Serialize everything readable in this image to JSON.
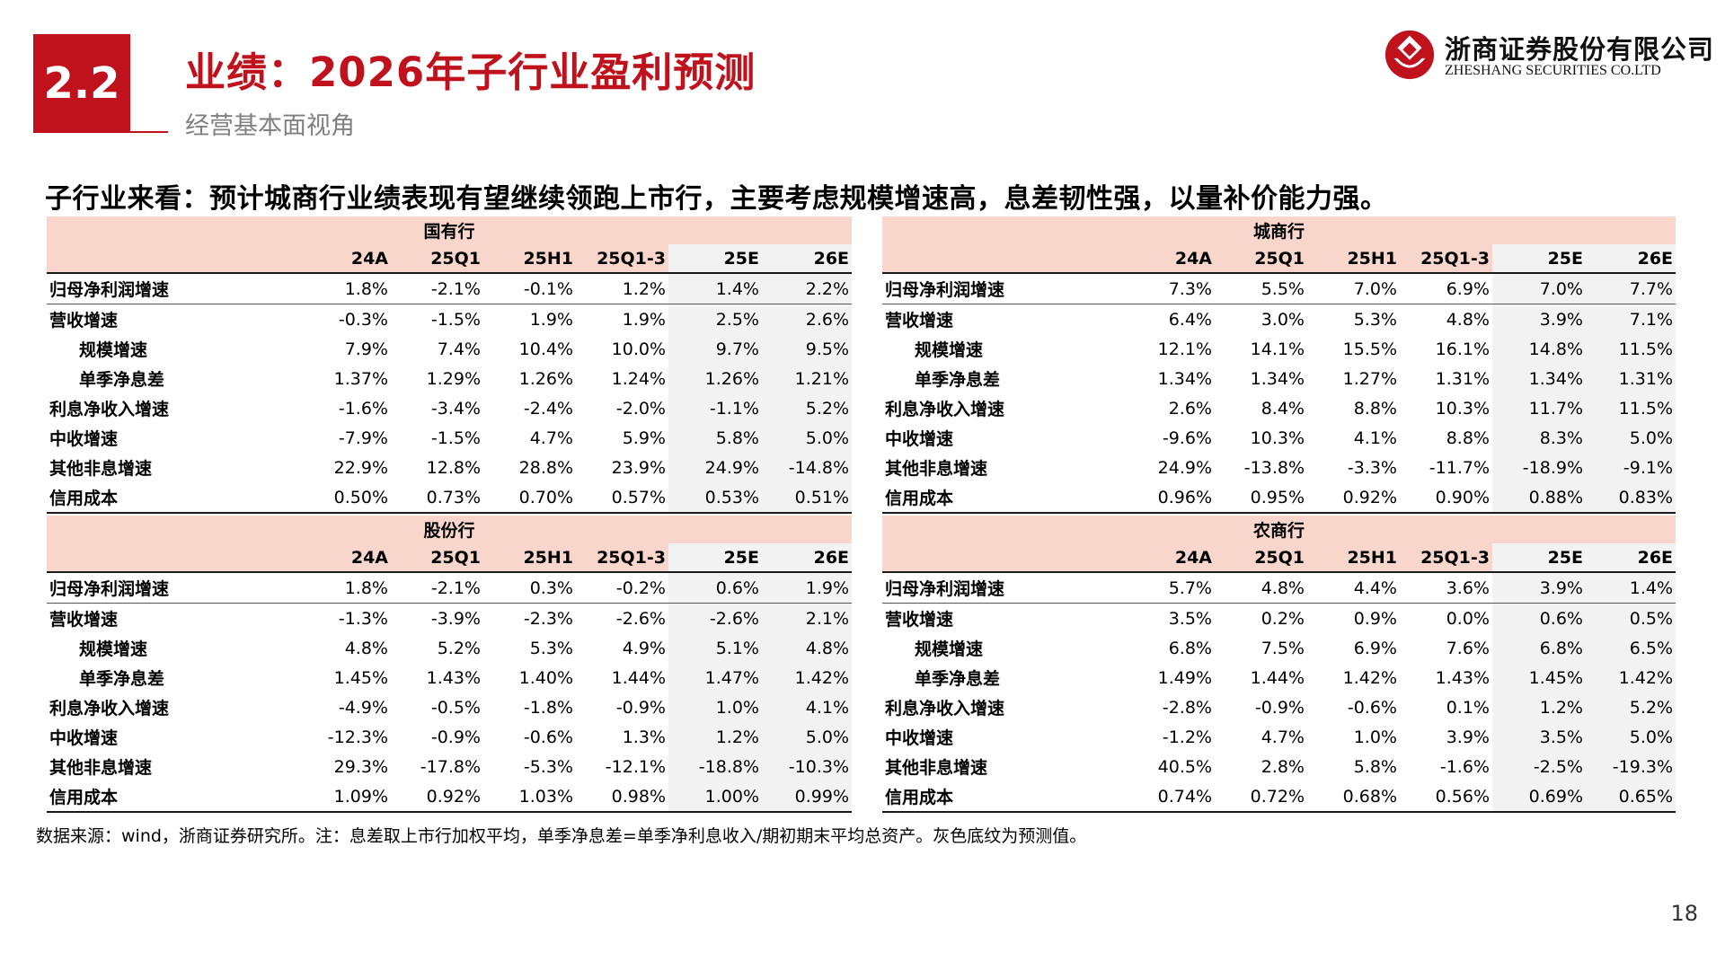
{
  "header": {
    "section_number": "2.2",
    "title": "业绩：2026年子行业盈利预测",
    "subtitle": "经营基本面视角"
  },
  "logo": {
    "cn": "浙商证券股份有限公司",
    "en": "ZHESHANG SECURITIES CO.LTD",
    "brand_color": "#c0121d"
  },
  "headline": "子行业来看：预计城商行业绩表现有望继续领跑上市行，主要考虑规模增速高，息差韧性强，以量补价能力强。",
  "columns": [
    "24A",
    "25Q1",
    "25H1",
    "25Q1-3",
    "25E",
    "26E"
  ],
  "row_labels": [
    "归母净利润增速",
    "营收增速",
    "规模增速",
    "单季净息差",
    "利息净收入增速",
    "中收增速",
    "其他非息增速",
    "信用成本"
  ],
  "tables": {
    "state": {
      "name": "国有行",
      "rows": [
        [
          "1.8%",
          "-2.1%",
          "-0.1%",
          "1.2%",
          "1.4%",
          "2.2%"
        ],
        [
          "-0.3%",
          "-1.5%",
          "1.9%",
          "1.9%",
          "2.5%",
          "2.6%"
        ],
        [
          "7.9%",
          "7.4%",
          "10.4%",
          "10.0%",
          "9.7%",
          "9.5%"
        ],
        [
          "1.37%",
          "1.29%",
          "1.26%",
          "1.24%",
          "1.26%",
          "1.21%"
        ],
        [
          "-1.6%",
          "-3.4%",
          "-2.4%",
          "-2.0%",
          "-1.1%",
          "5.2%"
        ],
        [
          "-7.9%",
          "-1.5%",
          "4.7%",
          "5.9%",
          "5.8%",
          "5.0%"
        ],
        [
          "22.9%",
          "12.8%",
          "28.8%",
          "23.9%",
          "24.9%",
          "-14.8%"
        ],
        [
          "0.50%",
          "0.73%",
          "0.70%",
          "0.57%",
          "0.53%",
          "0.51%"
        ]
      ]
    },
    "city": {
      "name": "城商行",
      "rows": [
        [
          "7.3%",
          "5.5%",
          "7.0%",
          "6.9%",
          "7.0%",
          "7.7%"
        ],
        [
          "6.4%",
          "3.0%",
          "5.3%",
          "4.8%",
          "3.9%",
          "7.1%"
        ],
        [
          "12.1%",
          "14.1%",
          "15.5%",
          "16.1%",
          "14.8%",
          "11.5%"
        ],
        [
          "1.34%",
          "1.34%",
          "1.27%",
          "1.31%",
          "1.34%",
          "1.31%"
        ],
        [
          "2.6%",
          "8.4%",
          "8.8%",
          "10.3%",
          "11.7%",
          "11.5%"
        ],
        [
          "-9.6%",
          "10.3%",
          "4.1%",
          "8.8%",
          "8.3%",
          "5.0%"
        ],
        [
          "24.9%",
          "-13.8%",
          "-3.3%",
          "-11.7%",
          "-18.9%",
          "-9.1%"
        ],
        [
          "0.96%",
          "0.95%",
          "0.92%",
          "0.90%",
          "0.88%",
          "0.83%"
        ]
      ]
    },
    "joint": {
      "name": "股份行",
      "rows": [
        [
          "1.8%",
          "-2.1%",
          "0.3%",
          "-0.2%",
          "0.6%",
          "1.9%"
        ],
        [
          "-1.3%",
          "-3.9%",
          "-2.3%",
          "-2.6%",
          "-2.6%",
          "2.1%"
        ],
        [
          "4.8%",
          "5.2%",
          "5.3%",
          "4.9%",
          "5.1%",
          "4.8%"
        ],
        [
          "1.45%",
          "1.43%",
          "1.40%",
          "1.44%",
          "1.47%",
          "1.42%"
        ],
        [
          "-4.9%",
          "-0.5%",
          "-1.8%",
          "-0.9%",
          "1.0%",
          "4.1%"
        ],
        [
          "-12.3%",
          "-0.9%",
          "-0.6%",
          "1.3%",
          "1.2%",
          "5.0%"
        ],
        [
          "29.3%",
          "-17.8%",
          "-5.3%",
          "-12.1%",
          "-18.8%",
          "-10.3%"
        ],
        [
          "1.09%",
          "0.92%",
          "1.03%",
          "0.98%",
          "1.00%",
          "0.99%"
        ]
      ]
    },
    "rural": {
      "name": "农商行",
      "rows": [
        [
          "5.7%",
          "4.8%",
          "4.4%",
          "3.6%",
          "3.9%",
          "1.4%"
        ],
        [
          "3.5%",
          "0.2%",
          "0.9%",
          "0.0%",
          "0.6%",
          "0.5%"
        ],
        [
          "6.8%",
          "7.5%",
          "6.9%",
          "7.6%",
          "6.8%",
          "6.5%"
        ],
        [
          "1.49%",
          "1.44%",
          "1.42%",
          "1.43%",
          "1.45%",
          "1.42%"
        ],
        [
          "-2.8%",
          "-0.9%",
          "-0.6%",
          "0.1%",
          "1.2%",
          "5.2%"
        ],
        [
          "-1.2%",
          "4.7%",
          "1.0%",
          "3.9%",
          "3.5%",
          "5.0%"
        ],
        [
          "40.5%",
          "2.8%",
          "5.8%",
          "-1.6%",
          "-2.5%",
          "-19.3%"
        ],
        [
          "0.74%",
          "0.72%",
          "0.68%",
          "0.56%",
          "0.69%",
          "0.65%"
        ]
      ]
    }
  },
  "footnote": "数据来源：wind，浙商证券研究所。注：息差取上市行加权平均，单季净息差=单季净利息收入/期初期末平均总资产。灰色底纹为预测值。",
  "page_number": "18"
}
